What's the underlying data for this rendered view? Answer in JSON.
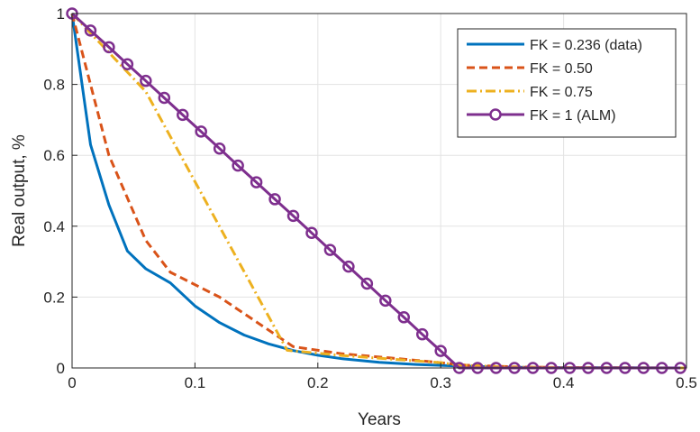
{
  "chart_data": {
    "type": "line",
    "title": "",
    "xlabel": "Years",
    "ylabel": "Real output, %",
    "xlim": [
      0,
      0.5
    ],
    "ylim": [
      0,
      1
    ],
    "xticks": [
      0,
      0.1,
      0.2,
      0.3,
      0.4,
      0.5
    ],
    "xtick_labels": [
      "0",
      "0.1",
      "0.2",
      "0.3",
      "0.4",
      "0.5"
    ],
    "yticks": [
      0,
      0.2,
      0.4,
      0.6,
      0.8,
      1
    ],
    "ytick_labels": [
      "0",
      "0.2",
      "0.4",
      "0.6",
      "0.8",
      "1"
    ],
    "grid": true,
    "legend_position": "top-right",
    "series": [
      {
        "name": "FK = 0.236 (data)",
        "color": "#0072BD",
        "style": "solid",
        "marker": "none",
        "x": [
          0,
          0.015,
          0.03,
          0.045,
          0.06,
          0.08,
          0.1,
          0.12,
          0.14,
          0.16,
          0.18,
          0.2,
          0.22,
          0.25,
          0.28,
          0.31,
          0.33,
          0.36,
          0.4,
          0.45,
          0.5
        ],
        "y": [
          1,
          0.63,
          0.46,
          0.33,
          0.28,
          0.24,
          0.175,
          0.128,
          0.093,
          0.068,
          0.049,
          0.036,
          0.026,
          0.016,
          0.01,
          0.006,
          0.004,
          0.002,
          0.001,
          0.0005,
          0
        ]
      },
      {
        "name": "FK = 0.50",
        "color": "#D95319",
        "style": "dashed",
        "marker": "none",
        "x": [
          0,
          0.03,
          0.06,
          0.08,
          0.12,
          0.18,
          0.22,
          0.26,
          0.3,
          0.32,
          0.36,
          0.4,
          0.45,
          0.5
        ],
        "y": [
          1,
          0.6,
          0.36,
          0.27,
          0.2,
          0.06,
          0.04,
          0.028,
          0.015,
          0.008,
          0.003,
          0.001,
          0.0005,
          0
        ]
      },
      {
        "name": "FK = 0.75",
        "color": "#EDB120",
        "style": "dashdot",
        "marker": "none",
        "x": [
          0,
          0.06,
          0.175,
          0.22,
          0.26,
          0.3,
          0.315,
          0.35,
          0.4,
          0.45,
          0.5
        ],
        "y": [
          1,
          0.78,
          0.05,
          0.035,
          0.025,
          0.015,
          0.008,
          0.003,
          0.001,
          0.0005,
          0
        ]
      },
      {
        "name": "FK = 1 (ALM)",
        "color": "#7E2F8E",
        "style": "solid",
        "marker": "circle",
        "x": [
          0,
          0.015,
          0.03,
          0.045,
          0.06,
          0.075,
          0.09,
          0.105,
          0.12,
          0.135,
          0.15,
          0.165,
          0.18,
          0.195,
          0.21,
          0.225,
          0.24,
          0.255,
          0.27,
          0.285,
          0.3,
          0.315,
          0.33,
          0.345,
          0.36,
          0.375,
          0.39,
          0.405,
          0.42,
          0.435,
          0.45,
          0.465,
          0.48,
          0.495
        ],
        "y": [
          1,
          0.952,
          0.905,
          0.857,
          0.81,
          0.762,
          0.714,
          0.667,
          0.619,
          0.571,
          0.524,
          0.476,
          0.429,
          0.381,
          0.333,
          0.286,
          0.238,
          0.19,
          0.143,
          0.095,
          0.048,
          0,
          0,
          0,
          0,
          0,
          0,
          0,
          0,
          0,
          0,
          0,
          0,
          0
        ]
      }
    ]
  }
}
